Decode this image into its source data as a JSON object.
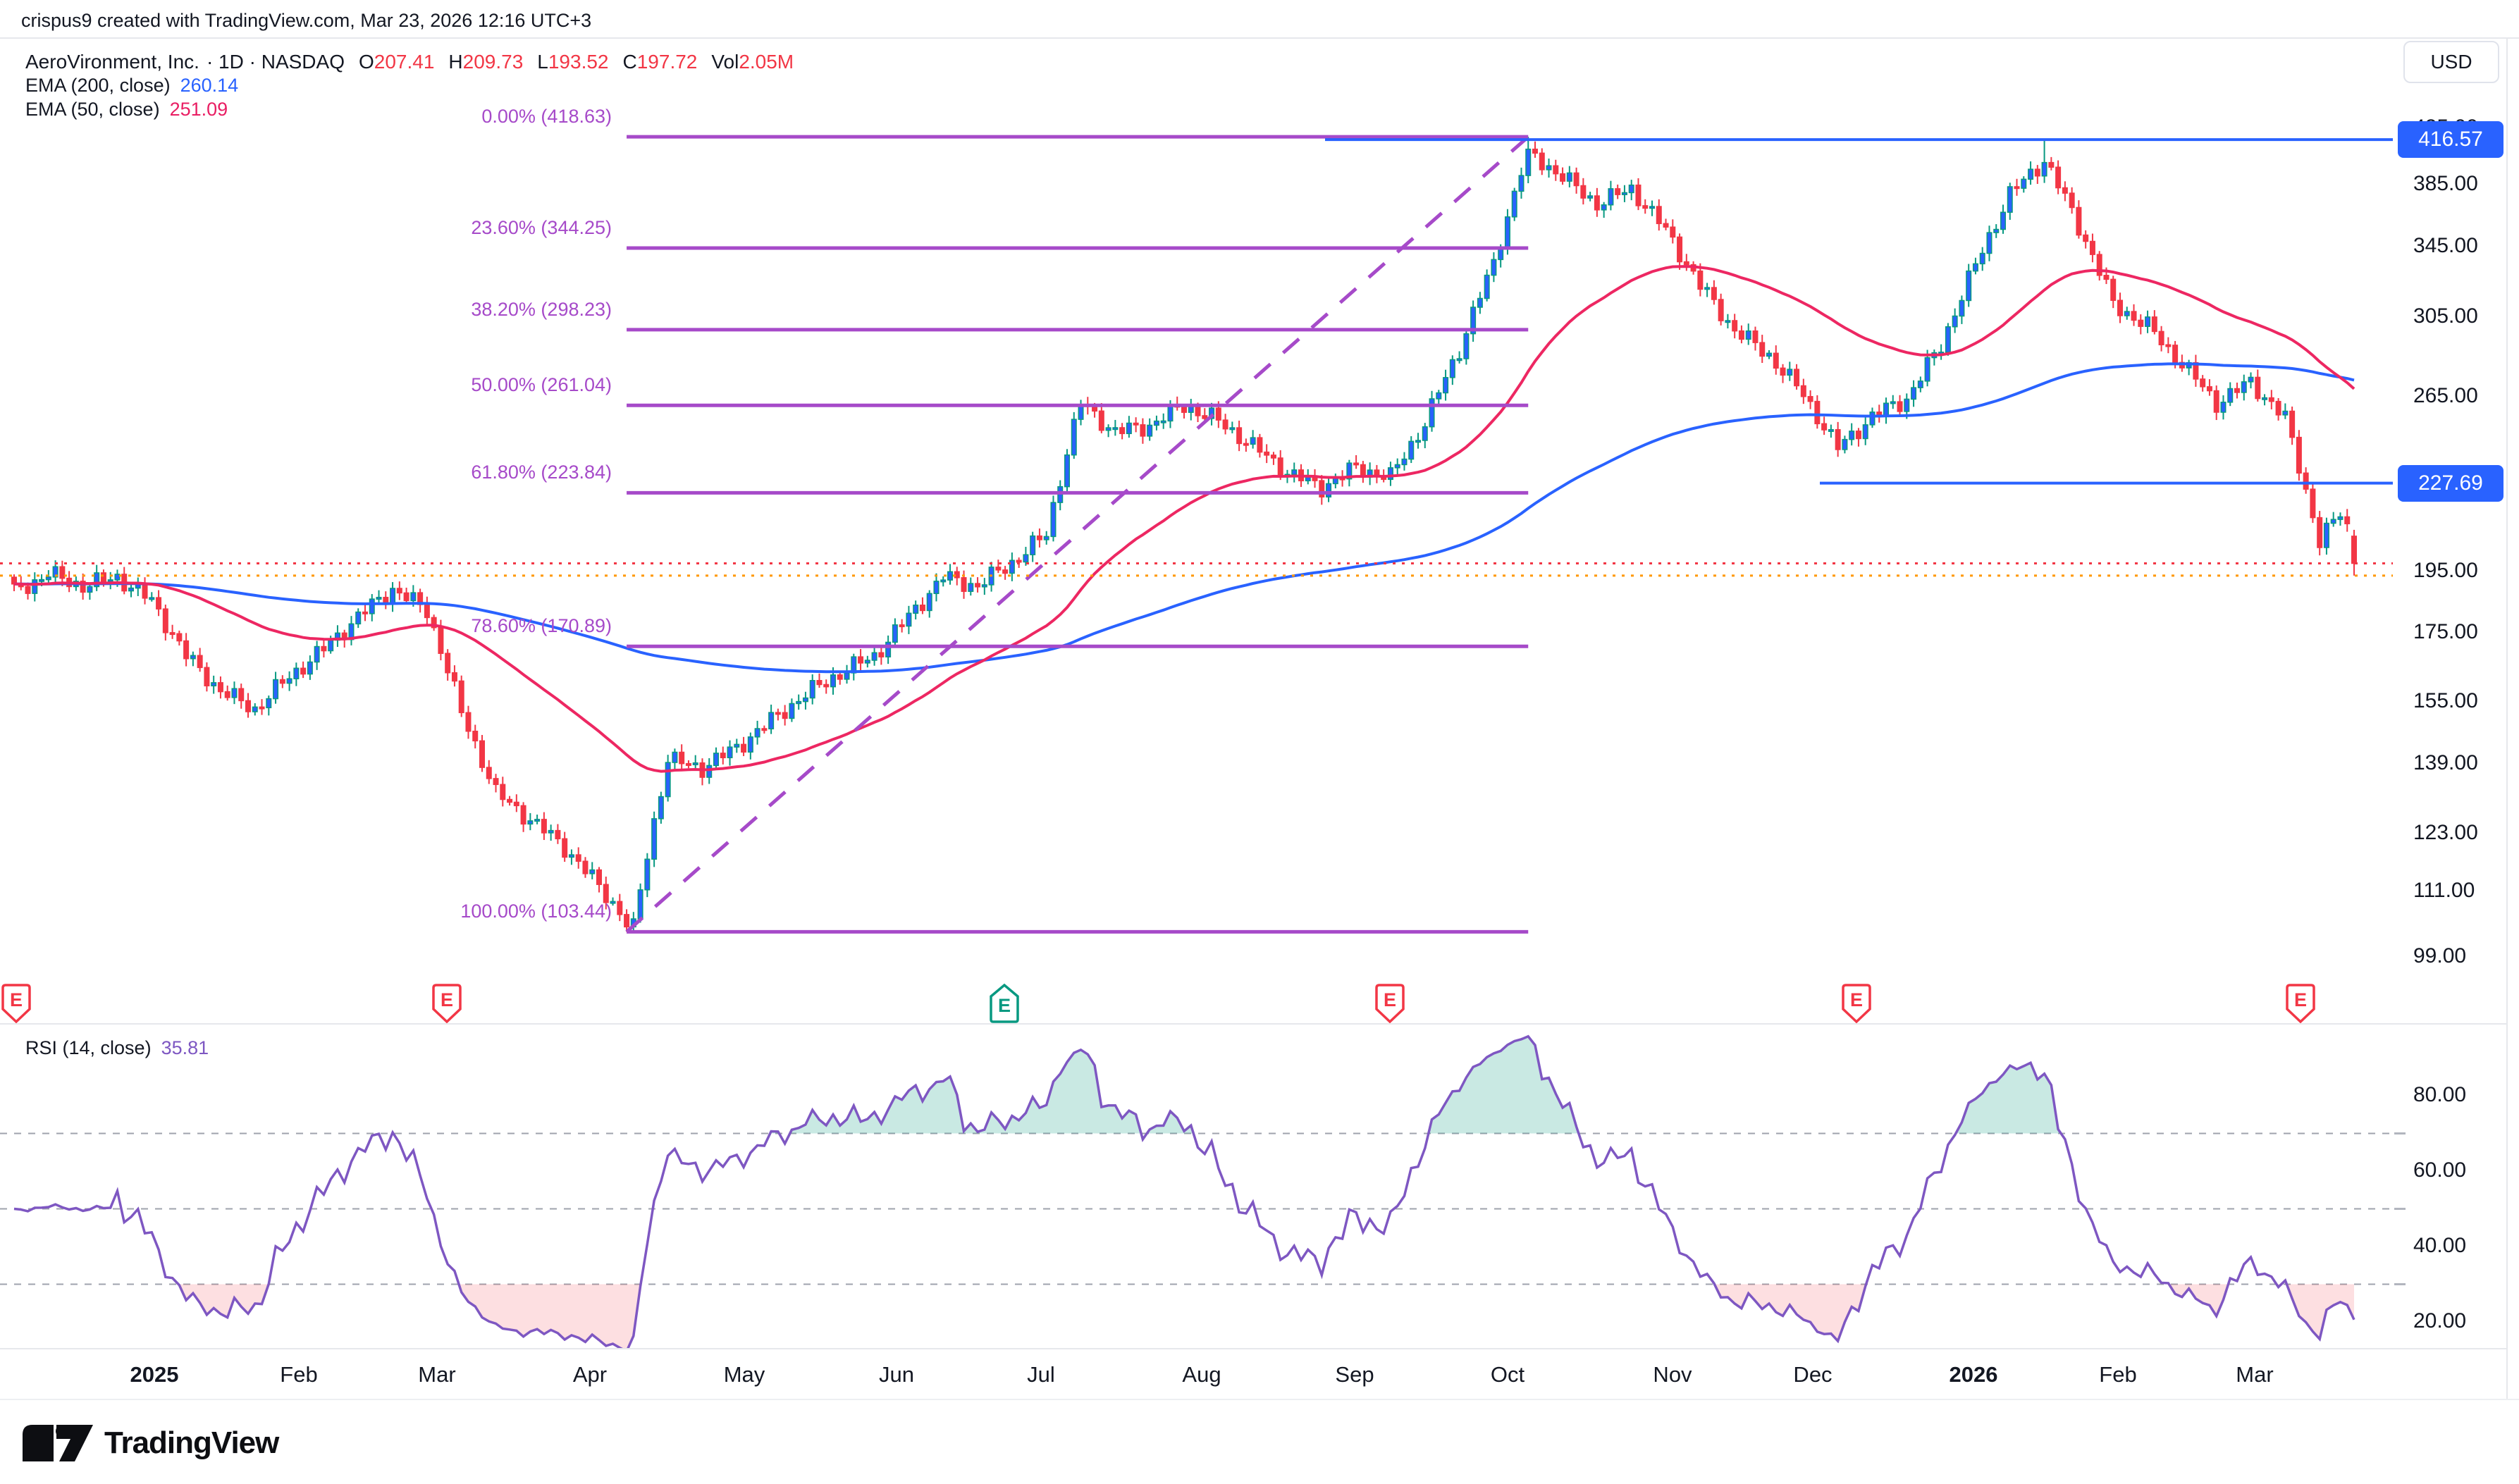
{
  "header": {
    "attribution": "crispus9 created with TradingView.com, Mar 23, 2026 12:16 UTC+3"
  },
  "symbol": {
    "title": "AeroVironment, Inc.",
    "meta": "· 1D · NASDAQ",
    "ohlc": {
      "o": {
        "label": "O",
        "value": "207.41"
      },
      "h": {
        "label": "H",
        "value": "209.73"
      },
      "l": {
        "label": "L",
        "value": "193.52"
      },
      "c": {
        "label": "C",
        "value": "197.72"
      }
    },
    "vol_label": "Vol",
    "vol_value": "2.05M"
  },
  "indicators": {
    "ema200": {
      "label": "EMA (200, close)",
      "value": "260.14",
      "color": "#2962FF"
    },
    "ema50": {
      "label": "EMA (50, close)",
      "value": "251.09",
      "color": "#E91E63"
    },
    "rsi": {
      "label": "RSI (14, close)",
      "value": "35.81",
      "color": "#7E57C2"
    }
  },
  "price_axis": {
    "currency": "USD",
    "labels": [
      {
        "text": "425.00",
        "price": 425
      },
      {
        "text": "385.00",
        "price": 385
      },
      {
        "text": "345.00",
        "price": 345
      },
      {
        "text": "305.00",
        "price": 305
      },
      {
        "text": "265.00",
        "price": 265
      },
      {
        "text": "195.00",
        "price": 195
      },
      {
        "text": "175.00",
        "price": 175
      },
      {
        "text": "155.00",
        "price": 155
      },
      {
        "text": "139.00",
        "price": 139
      },
      {
        "text": "123.00",
        "price": 123
      },
      {
        "text": "111.00",
        "price": 111
      },
      {
        "text": "99.00",
        "price": 99
      }
    ]
  },
  "rsi_axis": {
    "labels": [
      {
        "text": "80.00",
        "value": 80
      },
      {
        "text": "60.00",
        "value": 60
      },
      {
        "text": "40.00",
        "value": 40
      },
      {
        "text": "20.00",
        "value": 20
      }
    ],
    "bands": [
      70,
      50,
      30
    ]
  },
  "time_axis": {
    "labels": [
      {
        "text": "2025",
        "x": 219,
        "bold": true
      },
      {
        "text": "Feb",
        "x": 424,
        "bold": false
      },
      {
        "text": "Mar",
        "x": 620,
        "bold": false
      },
      {
        "text": "Apr",
        "x": 837,
        "bold": false
      },
      {
        "text": "May",
        "x": 1056,
        "bold": false
      },
      {
        "text": "Jun",
        "x": 1272,
        "bold": false
      },
      {
        "text": "Jul",
        "x": 1477,
        "bold": false
      },
      {
        "text": "Aug",
        "x": 1705,
        "bold": false
      },
      {
        "text": "Sep",
        "x": 1922,
        "bold": false
      },
      {
        "text": "Oct",
        "x": 2139,
        "bold": false
      },
      {
        "text": "Nov",
        "x": 2373,
        "bold": false
      },
      {
        "text": "Dec",
        "x": 2572,
        "bold": false
      },
      {
        "text": "2026",
        "x": 2800,
        "bold": true
      },
      {
        "text": "Feb",
        "x": 3005,
        "bold": false
      },
      {
        "text": "Mar",
        "x": 3199,
        "bold": false
      }
    ]
  },
  "earnings": {
    "label": "E",
    "up_color": "#089981",
    "down_color": "#F23645",
    "markers": [
      {
        "x": 23,
        "dir": "down"
      },
      {
        "x": 634,
        "dir": "down"
      },
      {
        "x": 1425,
        "dir": "up"
      },
      {
        "x": 1972,
        "dir": "down"
      },
      {
        "x": 2634,
        "dir": "down"
      },
      {
        "x": 3264,
        "dir": "down"
      }
    ]
  },
  "drawings": {
    "fib_retracement": {
      "color": "#A64AC9",
      "trend_from_price": 103.44,
      "trend_to_price": 418.63,
      "levels": [
        {
          "pct": "0.00%",
          "price": 418.63,
          "text": "0.00% (418.63)"
        },
        {
          "pct": "23.60%",
          "price": 344.25,
          "text": "23.60% (344.25)"
        },
        {
          "pct": "38.20%",
          "price": 298.23,
          "text": "38.20% (298.23)"
        },
        {
          "pct": "50.00%",
          "price": 261.04,
          "text": "50.00% (261.04)"
        },
        {
          "pct": "61.80%",
          "price": 223.84,
          "text": "61.80% (223.84)"
        },
        {
          "pct": "78.60%",
          "price": 170.89,
          "text": "78.60% (170.89)"
        },
        {
          "pct": "100.00%",
          "price": 103.44,
          "text": "100.00% (103.44)"
        }
      ]
    }
  },
  "chart_data": {
    "type": "candlestick",
    "title": "AeroVironment, Inc. 1D NASDAQ",
    "price_scale": "log",
    "visible_price_range": [
      95,
      500
    ],
    "x_range": [
      "Dec 2024",
      "Mar 2026"
    ],
    "colors": {
      "up_body": "#2962FF",
      "up_border": "#089981",
      "up_wick": "#089981",
      "down": "#F23645",
      "ema200": "#2962FF",
      "ema50": "#ED2762",
      "rsi_line": "#7E57C2",
      "rsi_over_fill": "rgba(8,153,129,0.22)",
      "rsi_under_fill": "rgba(242,54,69,0.16)",
      "fib": "#A64AC9"
    },
    "weekly_closes": [
      188,
      194,
      190,
      193,
      185,
      168,
      158,
      153,
      162,
      170,
      180,
      189,
      182,
      152,
      132,
      126,
      120,
      112,
      104,
      140,
      138,
      143,
      150,
      157,
      163,
      168,
      180,
      193,
      190,
      198,
      208,
      262,
      249,
      252,
      261,
      254,
      243,
      232,
      226,
      234,
      230,
      253,
      288,
      335,
      408,
      390,
      372,
      382,
      355,
      322,
      298,
      285,
      266,
      242,
      256,
      264,
      290,
      334,
      378,
      402,
      358,
      312,
      300,
      281,
      262,
      272,
      255,
      205,
      224
    ],
    "key_points": {
      "swing_low": {
        "date": "Apr 2025",
        "price": 103.44
      },
      "swing_high": {
        "date": "Oct 2025",
        "price": 418.63
      },
      "jan_2026_high": 415.8,
      "last_bar": {
        "open": 207.41,
        "high": 209.73,
        "low": 193.52,
        "close": 197.72
      }
    },
    "overlays": [
      {
        "name": "EMA 200",
        "period": 200,
        "color": "#2962FF",
        "last": 260.14
      },
      {
        "name": "EMA 50",
        "period": 50,
        "color": "#ED2762",
        "last": 251.09
      }
    ],
    "price_lines": [
      {
        "price": 416.57,
        "style": "solid",
        "color": "#2962FF",
        "x_start": 1880,
        "badge": "416.57"
      },
      {
        "price": 227.69,
        "style": "solid",
        "color": "#2962FF",
        "x_start": 2582,
        "badge": "227.69"
      },
      {
        "price": 197.72,
        "style": "dotted",
        "color": "#F23645",
        "x_start": 0
      },
      {
        "price": 193.5,
        "style": "dotted",
        "color": "#FF9800",
        "x_start": 0
      }
    ],
    "rsi": {
      "period": 14,
      "last": 35.81,
      "overbought": 70,
      "midline": 50,
      "oversold": 30
    }
  },
  "branding": {
    "logo_text": "TradingView"
  }
}
